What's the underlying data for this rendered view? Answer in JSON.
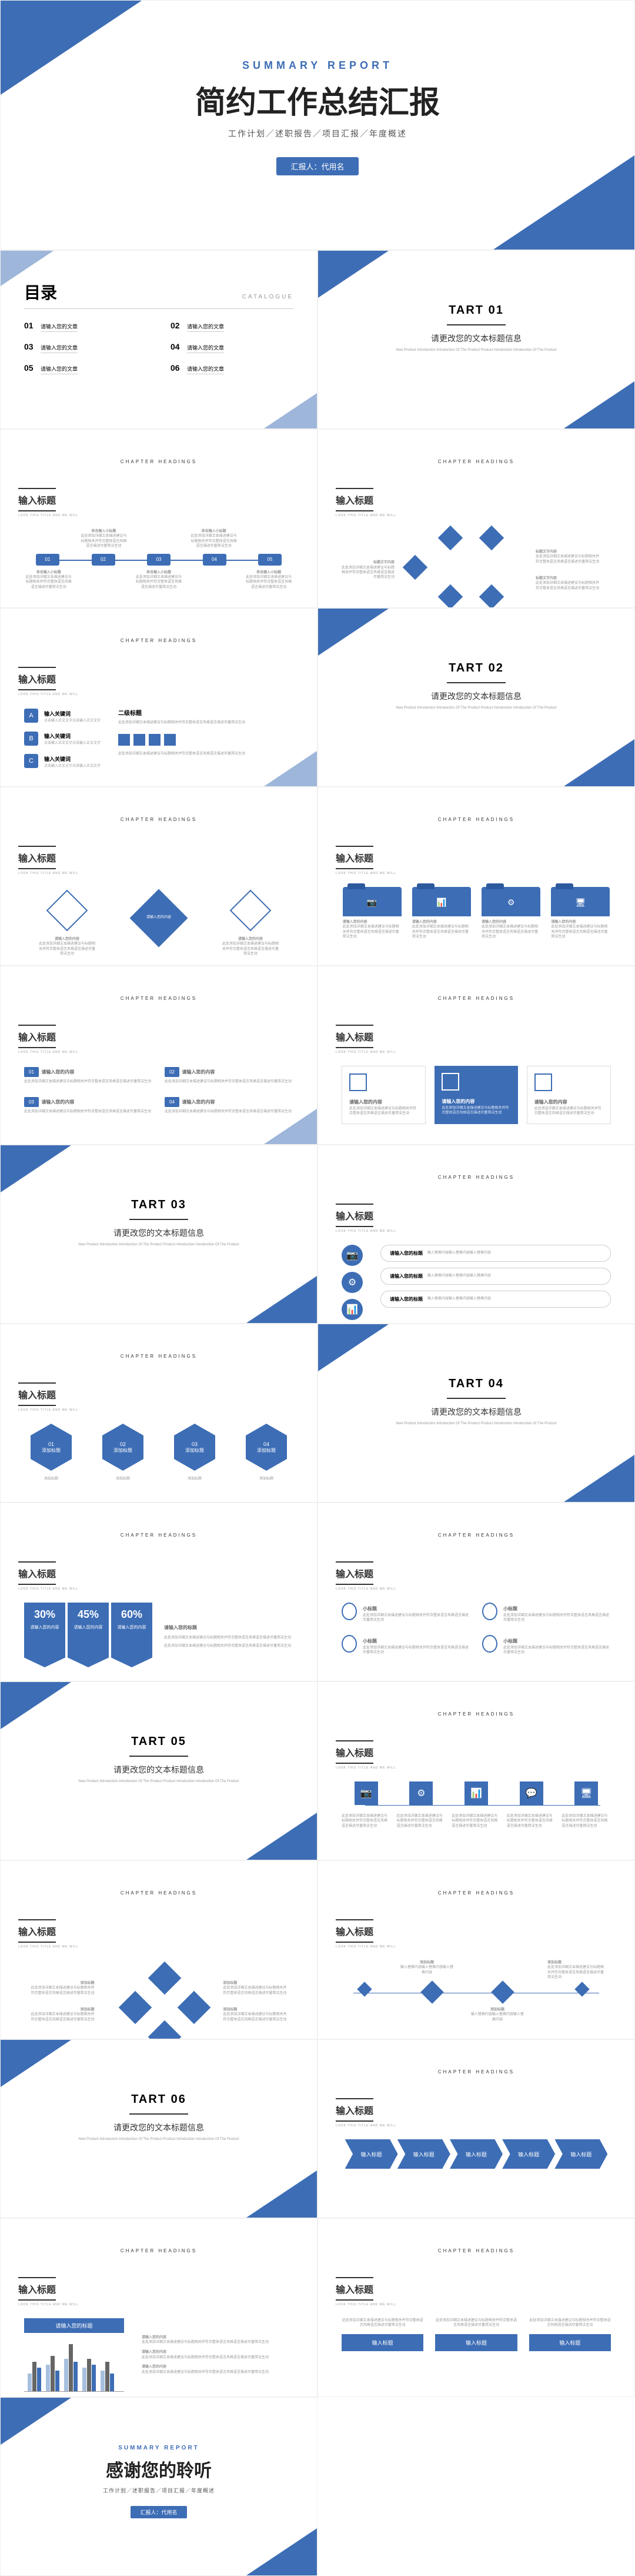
{
  "colors": {
    "primary": "#3d6db5",
    "primary_light": "#a8c0e0",
    "text": "#333333",
    "muted": "#999999",
    "bg": "#ffffff"
  },
  "cover": {
    "eyebrow": "SUMMARY REPORT",
    "title": "简约工作总结汇报",
    "subtitle": "工作计划／述职报告／项目汇报／年度概述",
    "presenter_label": "汇报人：代用名"
  },
  "toc": {
    "title": "目录",
    "title_en": "CATALOGUE",
    "items": [
      {
        "num": "01",
        "text": "请输入您的文章"
      },
      {
        "num": "02",
        "text": "请输入您的文章"
      },
      {
        "num": "03",
        "text": "请输入您的文章"
      },
      {
        "num": "04",
        "text": "请输入您的文章"
      },
      {
        "num": "05",
        "text": "请输入您的文章"
      },
      {
        "num": "06",
        "text": "请输入您的文章"
      }
    ]
  },
  "section": {
    "tart": "TART",
    "subtitle": "请更改您的文本标题信息",
    "tiny": "New Product Introduction Introduction Of The Product Product Introduction Introduction Of The Product"
  },
  "heading": {
    "label": "输入标题",
    "eyebrow": "CHAPTER HEADINGS",
    "sub": "LOOK THIS TITLE AND WE WILL"
  },
  "content": {
    "small_title": "单击输入小标题",
    "sub_title": "小标题",
    "item_title": "请输入您的内容",
    "item_desc": "此处添加详细文本描述建议与标题相关并符合整体语言风格语言描述尽量简洁生动",
    "keyword": "输入关键词",
    "keyword_desc": "点击输入正文文字点击输入正文文字",
    "level2": "二级标题",
    "title_text": "标题文字内容",
    "add_title": "添加标题",
    "input_title": "输入标题",
    "your_title": "请输入您的标题",
    "lorem_cn": "输入替换内容输入替换内容输入替换内容"
  },
  "timeline": {
    "nodes": [
      "01",
      "02",
      "03",
      "04",
      "05"
    ]
  },
  "percents": [
    "30%",
    "45%",
    "60%"
  ],
  "letters": [
    "A",
    "B",
    "C"
  ],
  "closing": {
    "eyebrow": "SUMMARY REPORT",
    "title": "感谢您的聆听",
    "subtitle": "工作计划／述职报告／项目汇报／年度概述",
    "presenter_label": "汇报人：代用名"
  },
  "chart": {
    "bars": [
      [
        30,
        50,
        40
      ],
      [
        45,
        60,
        35
      ],
      [
        55,
        80,
        50
      ],
      [
        40,
        55,
        45
      ],
      [
        35,
        50,
        30
      ]
    ],
    "colors": [
      "#a8c0e0",
      "#666666",
      "#3d6db5"
    ]
  }
}
